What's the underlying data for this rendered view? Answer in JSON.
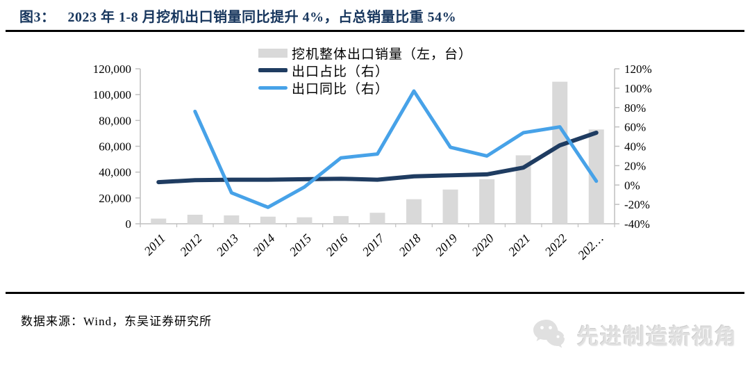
{
  "page": {
    "figure_label": "图3：",
    "title": "2023 年 1-8 月挖机出口销量同比提升 4%，占总销量比重 54%"
  },
  "legend": {
    "items": [
      {
        "label": "挖机整体出口销量（左，台）",
        "swatch": "gray-bar"
      },
      {
        "label": "出口占比（右）",
        "swatch": "navy-line"
      },
      {
        "label": "出口同比（右）",
        "swatch": "blue-line"
      }
    ]
  },
  "footer": {
    "source": "数据来源：Wind，东吴证券研究所"
  },
  "watermark": {
    "icon": "wechat-icon",
    "label": "先进制造新视角"
  },
  "colors": {
    "title": "#17365d",
    "bar": "#d9d9d9",
    "line_share": "#1f3c61",
    "line_yoy": "#47a2e8",
    "axis": "#bfbfbf",
    "axis_text": "#000000"
  },
  "chart_data": {
    "type": "combo",
    "categories": [
      "2011",
      "2012",
      "2013",
      "2014",
      "2015",
      "2016",
      "2017",
      "2018",
      "2019",
      "2020",
      "2021",
      "2022",
      "202…"
    ],
    "series": [
      {
        "name": "挖机整体出口销量（左，台）",
        "type": "bar",
        "axis": "left",
        "color": "#d9d9d9",
        "values": [
          4000,
          7000,
          6500,
          5500,
          5000,
          6000,
          8500,
          19000,
          26500,
          34500,
          53000,
          110000,
          73000
        ]
      },
      {
        "name": "出口占比（右）",
        "type": "line",
        "axis": "right",
        "color": "#1f3c61",
        "stroke_width": 6,
        "unit": "%",
        "values": [
          3,
          5,
          5.5,
          5.5,
          6,
          6.5,
          5.5,
          9,
          10,
          11,
          18,
          41,
          54
        ]
      },
      {
        "name": "出口同比（右）",
        "type": "line",
        "axis": "right",
        "color": "#47a2e8",
        "stroke_width": 5,
        "unit": "%",
        "values": [
          null,
          76,
          -8,
          -23,
          -2,
          28,
          32,
          97,
          39,
          30,
          54,
          60,
          4
        ]
      }
    ],
    "left_axis": {
      "min": 0,
      "max": 120000,
      "tick_values": [
        0,
        20000,
        40000,
        60000,
        80000,
        100000,
        120000
      ],
      "tick_labels": [
        "0",
        "20,000",
        "40,000",
        "60,000",
        "80,000",
        "100,000",
        "120,000"
      ]
    },
    "right_axis": {
      "min": -40,
      "max": 120,
      "tick_values": [
        -40,
        -20,
        0,
        20,
        40,
        60,
        80,
        100,
        120
      ],
      "tick_labels": [
        "-40%",
        "-20%",
        "0%",
        "20%",
        "40%",
        "60%",
        "80%",
        "100%",
        "120%"
      ]
    },
    "grid": false,
    "legend_position": "top-center",
    "xlabel": "",
    "ylabel_left": "台",
    "ylabel_right": "%"
  }
}
